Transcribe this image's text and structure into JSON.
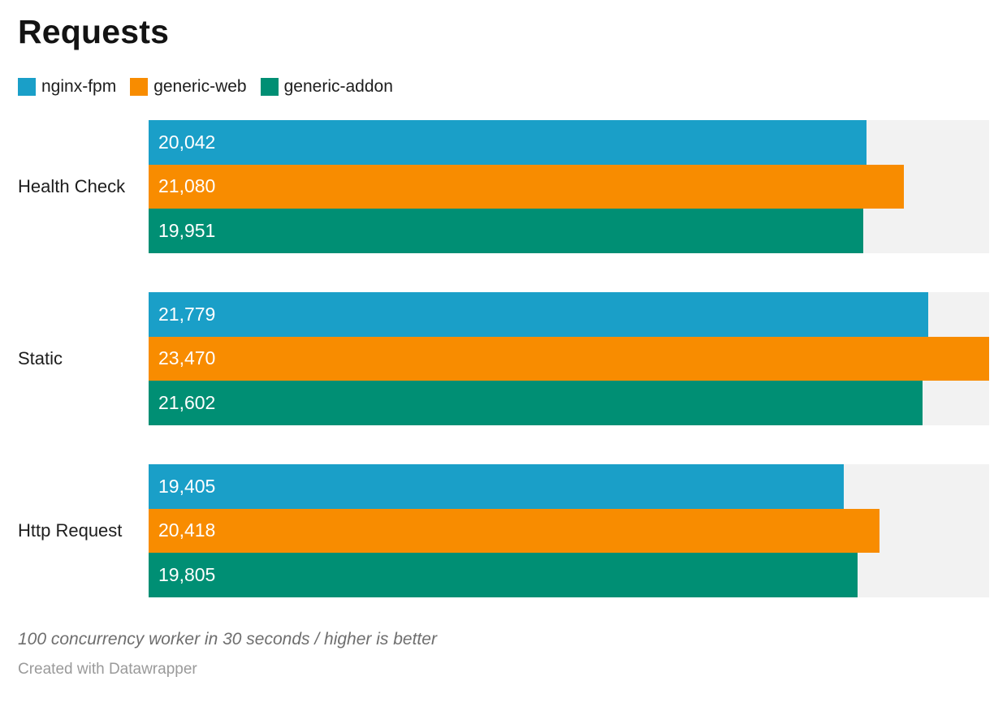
{
  "title": "Requests",
  "notes": "100 concurrency worker in 30 seconds / higher is better",
  "attribution": "Created with Datawrapper",
  "colors": {
    "track": "#f2f2f2",
    "bar_label_text": "#ffffff",
    "title_text": "#131313",
    "body_text": "#1d1d1d"
  },
  "chart_data": {
    "type": "bar",
    "orientation": "horizontal",
    "title": "Requests",
    "categories": [
      "Health Check",
      "Static",
      "Http Request"
    ],
    "series": [
      {
        "name": "nginx-fpm",
        "color": "#1a9fc8",
        "values": [
          20042,
          21779,
          19405
        ],
        "labels": [
          "20,042",
          "21,779",
          "19,405"
        ]
      },
      {
        "name": "generic-web",
        "color": "#f88c00",
        "values": [
          21080,
          23470,
          20418
        ],
        "labels": [
          "21,080",
          "23,470",
          "20,418"
        ]
      },
      {
        "name": "generic-addon",
        "color": "#008f74",
        "values": [
          19951,
          21602,
          19805
        ],
        "labels": [
          "19,951",
          "21,602",
          "19,805"
        ]
      }
    ],
    "axis_min": 0,
    "axis_max": 23470,
    "value_format": "thousands-comma",
    "grid": false,
    "legend_position": "top",
    "footnote": "100 concurrency worker in 30 seconds / higher is better"
  }
}
